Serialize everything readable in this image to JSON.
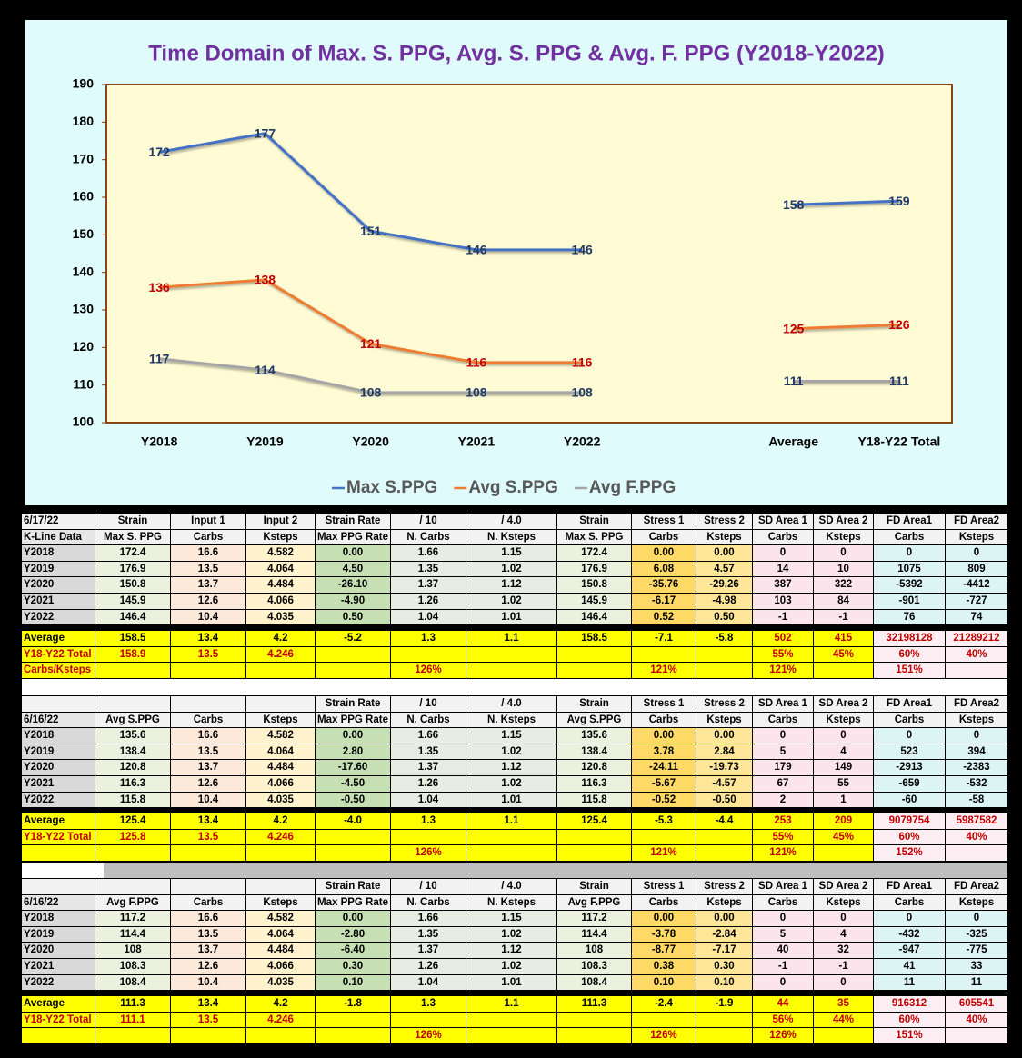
{
  "chart_data": {
    "type": "line",
    "title": "Time Domain of Max. S. PPG, Avg. S. PPG & Avg. F. PPG  (Y2018-Y2022)",
    "categories": [
      "Y2018",
      "Y2019",
      "Y2020",
      "Y2021",
      "Y2022",
      null,
      "Average",
      "Y18-Y22 Total"
    ],
    "series": [
      {
        "name": "Max S.PPG",
        "color": "#4472c4",
        "label_color": "#1f3864",
        "values": [
          172,
          177,
          151,
          146,
          146,
          null,
          158,
          159
        ]
      },
      {
        "name": "Avg S.PPG",
        "color": "#ed7d31",
        "label_color": "#c00000",
        "values": [
          136,
          138,
          121,
          116,
          116,
          null,
          125,
          126
        ]
      },
      {
        "name": "Avg F.PPG",
        "color": "#a5a5a5",
        "label_color": "#1f3864",
        "values": [
          117,
          114,
          108,
          108,
          108,
          null,
          111,
          111
        ]
      }
    ],
    "ylim": [
      100,
      190
    ],
    "yticks": [
      100,
      110,
      120,
      130,
      140,
      150,
      160,
      170,
      180,
      190
    ],
    "grid": false,
    "legend": "bottom"
  },
  "tables": [
    {
      "header": [
        [
          "6/17/22",
          "Strain",
          "Input 1",
          "Input 2",
          "Strain Rate",
          "/ 10",
          "/ 4.0",
          "Strain",
          "Stress 1",
          "Stress 2",
          "SD Area 1",
          "SD Area 2",
          "FD Area1",
          "FD Area2"
        ],
        [
          "K-Line Data",
          "Max S. PPG",
          "Carbs",
          "Ksteps",
          "Max PPG Rate",
          "N. Carbs",
          "N. Ksteps",
          "Max S. PPG",
          "Carbs",
          "Ksteps",
          "Carbs",
          "Ksteps",
          "Carbs",
          "Ksteps"
        ]
      ],
      "rows": [
        [
          "Y2018",
          "172.4",
          "16.6",
          "4.582",
          "0.00",
          "1.66",
          "1.15",
          "172.4",
          "0.00",
          "0.00",
          "0",
          "0",
          "0",
          "0"
        ],
        [
          "Y2019",
          "176.9",
          "13.5",
          "4.064",
          "4.50",
          "1.35",
          "1.02",
          "176.9",
          "6.08",
          "4.57",
          "14",
          "10",
          "1075",
          "809"
        ],
        [
          "Y2020",
          "150.8",
          "13.7",
          "4.484",
          "-26.10",
          "1.37",
          "1.12",
          "150.8",
          "-35.76",
          "-29.26",
          "387",
          "322",
          "-5392",
          "-4412"
        ],
        [
          "Y2021",
          "145.9",
          "12.6",
          "4.066",
          "-4.90",
          "1.26",
          "1.02",
          "145.9",
          "-6.17",
          "-4.98",
          "103",
          "84",
          "-901",
          "-727"
        ],
        [
          "Y2022",
          "146.4",
          "10.4",
          "4.035",
          "0.50",
          "1.04",
          "1.01",
          "146.4",
          "0.52",
          "0.50",
          "-1",
          "-1",
          "76",
          "74"
        ]
      ],
      "summary": [
        [
          "Average",
          "158.5",
          "13.4",
          "4.2",
          "-5.2",
          "1.3",
          "1.1",
          "158.5",
          "-7.1",
          "-5.8",
          "502",
          "415",
          "32198128",
          "21289212"
        ],
        [
          "Y18-Y22 Total",
          "158.9",
          "13.5",
          "4.246",
          null,
          null,
          null,
          null,
          null,
          null,
          "55%",
          "45%",
          "60%",
          "40%"
        ],
        [
          "Carbs/Ksteps",
          null,
          null,
          null,
          null,
          "126%",
          null,
          null,
          "121%",
          null,
          "121%",
          null,
          "151%",
          null
        ]
      ]
    },
    {
      "header": [
        [
          null,
          null,
          null,
          null,
          "Strain Rate",
          "/ 10",
          "/ 4.0",
          "Strain",
          "Stress 1",
          "Stress 2",
          "SD Area 1",
          "SD Area 2",
          "FD Area1",
          "FD Area2"
        ],
        [
          "6/16/22",
          "Avg S.PPG",
          "Carbs",
          "Ksteps",
          "Max PPG Rate",
          "N. Carbs",
          "N. Ksteps",
          "Avg S.PPG",
          "Carbs",
          "Ksteps",
          "Carbs",
          "Ksteps",
          "Carbs",
          "Ksteps"
        ]
      ],
      "rows": [
        [
          "Y2018",
          "135.6",
          "16.6",
          "4.582",
          "0.00",
          "1.66",
          "1.15",
          "135.6",
          "0.00",
          "0.00",
          "0",
          "0",
          "0",
          "0"
        ],
        [
          "Y2019",
          "138.4",
          "13.5",
          "4.064",
          "2.80",
          "1.35",
          "1.02",
          "138.4",
          "3.78",
          "2.84",
          "5",
          "4",
          "523",
          "394"
        ],
        [
          "Y2020",
          "120.8",
          "13.7",
          "4.484",
          "-17.60",
          "1.37",
          "1.12",
          "120.8",
          "-24.11",
          "-19.73",
          "179",
          "149",
          "-2913",
          "-2383"
        ],
        [
          "Y2021",
          "116.3",
          "12.6",
          "4.066",
          "-4.50",
          "1.26",
          "1.02",
          "116.3",
          "-5.67",
          "-4.57",
          "67",
          "55",
          "-659",
          "-532"
        ],
        [
          "Y2022",
          "115.8",
          "10.4",
          "4.035",
          "-0.50",
          "1.04",
          "1.01",
          "115.8",
          "-0.52",
          "-0.50",
          "2",
          "1",
          "-60",
          "-58"
        ]
      ],
      "summary": [
        [
          "Average",
          "125.4",
          "13.4",
          "4.2",
          "-4.0",
          "1.3",
          "1.1",
          "125.4",
          "-5.3",
          "-4.4",
          "253",
          "209",
          "9079754",
          "5987582"
        ],
        [
          "Y18-Y22 Total",
          "125.8",
          "13.5",
          "4.246",
          null,
          null,
          null,
          null,
          null,
          null,
          "55%",
          "45%",
          "60%",
          "40%"
        ],
        [
          null,
          null,
          null,
          null,
          null,
          "126%",
          null,
          null,
          "121%",
          null,
          "121%",
          null,
          "152%",
          null
        ]
      ]
    },
    {
      "header": [
        [
          null,
          null,
          null,
          null,
          "Strain Rate",
          "/ 10",
          "/ 4.0",
          "Strain",
          "Stress 1",
          "Stress 2",
          "SD Area 1",
          "SD Area 2",
          "FD Area1",
          "FD Area2"
        ],
        [
          "6/16/22",
          "Avg F.PPG",
          "Carbs",
          "Ksteps",
          "Max PPG Rate",
          "N. Carbs",
          "N. Ksteps",
          "Avg F.PPG",
          "Carbs",
          "Ksteps",
          "Carbs",
          "Ksteps",
          "Carbs",
          "Ksteps"
        ]
      ],
      "rows": [
        [
          "Y2018",
          "117.2",
          "16.6",
          "4.582",
          "0.00",
          "1.66",
          "1.15",
          "117.2",
          "0.00",
          "0.00",
          "0",
          "0",
          "0",
          "0"
        ],
        [
          "Y2019",
          "114.4",
          "13.5",
          "4.064",
          "-2.80",
          "1.35",
          "1.02",
          "114.4",
          "-3.78",
          "-2.84",
          "5",
          "4",
          "-432",
          "-325"
        ],
        [
          "Y2020",
          "108",
          "13.7",
          "4.484",
          "-6.40",
          "1.37",
          "1.12",
          "108",
          "-8.77",
          "-7.17",
          "40",
          "32",
          "-947",
          "-775"
        ],
        [
          "Y2021",
          "108.3",
          "12.6",
          "4.066",
          "0.30",
          "1.26",
          "1.02",
          "108.3",
          "0.38",
          "0.30",
          "-1",
          "-1",
          "41",
          "33"
        ],
        [
          "Y2022",
          "108.4",
          "10.4",
          "4.035",
          "0.10",
          "1.04",
          "1.01",
          "108.4",
          "0.10",
          "0.10",
          "0",
          "0",
          "11",
          "11"
        ]
      ],
      "summary": [
        [
          "Average",
          "111.3",
          "13.4",
          "4.2",
          "-1.8",
          "1.3",
          "1.1",
          "111.3",
          "-2.4",
          "-1.9",
          "44",
          "35",
          "916312",
          "605541"
        ],
        [
          "Y18-Y22 Total",
          "111.1",
          "13.5",
          "4.246",
          null,
          null,
          null,
          null,
          null,
          null,
          "56%",
          "44%",
          "60%",
          "40%"
        ],
        [
          null,
          null,
          null,
          null,
          null,
          "126%",
          null,
          null,
          "126%",
          null,
          "126%",
          null,
          "151%",
          null
        ]
      ]
    }
  ]
}
